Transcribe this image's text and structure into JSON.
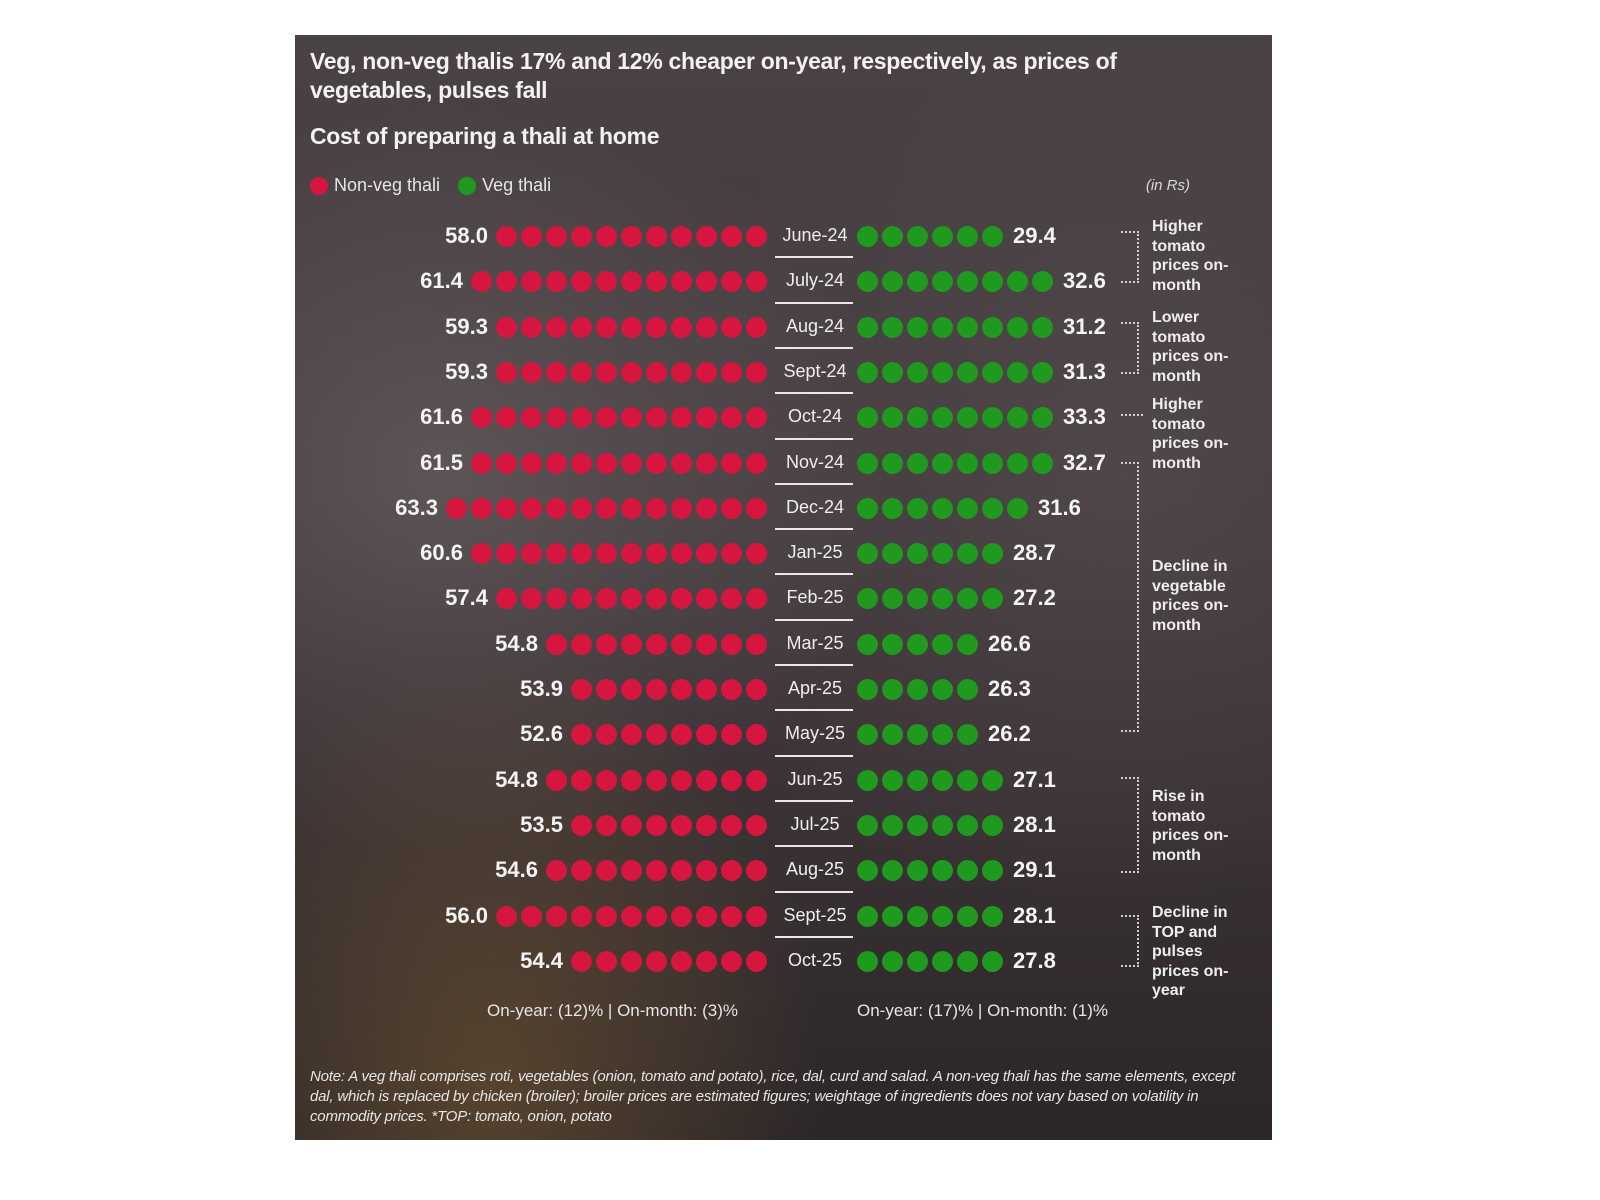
{
  "header": {
    "title": "Veg, non-veg thalis 17% and 12% cheaper on-year, respectively, as prices of vegetables, pulses fall",
    "subtitle": "Cost of preparing a thali at home",
    "unit": "(in Rs)"
  },
  "legend": [
    {
      "label": "Non-veg thali",
      "color": "#d6163f"
    },
    {
      "label": "Veg thali",
      "color": "#1f9a1f"
    }
  ],
  "colors": {
    "nonveg": "#d6163f",
    "veg": "#1f9a1f"
  },
  "rows": [
    {
      "month": "June-24",
      "nonveg": "58.0",
      "veg": "29.4",
      "nonveg_dots": 11,
      "veg_dots": 6
    },
    {
      "month": "July-24",
      "nonveg": "61.4",
      "veg": "32.6",
      "nonveg_dots": 12,
      "veg_dots": 8
    },
    {
      "month": "Aug-24",
      "nonveg": "59.3",
      "veg": "31.2",
      "nonveg_dots": 11,
      "veg_dots": 8
    },
    {
      "month": "Sept-24",
      "nonveg": "59.3",
      "veg": "31.3",
      "nonveg_dots": 11,
      "veg_dots": 8
    },
    {
      "month": "Oct-24",
      "nonveg": "61.6",
      "veg": "33.3",
      "nonveg_dots": 12,
      "veg_dots": 8
    },
    {
      "month": "Nov-24",
      "nonveg": "61.5",
      "veg": "32.7",
      "nonveg_dots": 12,
      "veg_dots": 8
    },
    {
      "month": "Dec-24",
      "nonveg": "63.3",
      "veg": "31.6",
      "nonveg_dots": 13,
      "veg_dots": 7
    },
    {
      "month": "Jan-25",
      "nonveg": "60.6",
      "veg": "28.7",
      "nonveg_dots": 12,
      "veg_dots": 6
    },
    {
      "month": "Feb-25",
      "nonveg": "57.4",
      "veg": "27.2",
      "nonveg_dots": 11,
      "veg_dots": 6
    },
    {
      "month": "Mar-25",
      "nonveg": "54.8",
      "veg": "26.6",
      "nonveg_dots": 9,
      "veg_dots": 5
    },
    {
      "month": "Apr-25",
      "nonveg": "53.9",
      "veg": "26.3",
      "nonveg_dots": 8,
      "veg_dots": 5
    },
    {
      "month": "May-25",
      "nonveg": "52.6",
      "veg": "26.2",
      "nonveg_dots": 8,
      "veg_dots": 5
    },
    {
      "month": "Jun-25",
      "nonveg": "54.8",
      "veg": "27.1",
      "nonveg_dots": 9,
      "veg_dots": 6
    },
    {
      "month": "Jul-25",
      "nonveg": "53.5",
      "veg": "28.1",
      "nonveg_dots": 8,
      "veg_dots": 6
    },
    {
      "month": "Aug-25",
      "nonveg": "54.6",
      "veg": "29.1",
      "nonveg_dots": 9,
      "veg_dots": 6
    },
    {
      "month": "Sept-25",
      "nonveg": "56.0",
      "veg": "28.1",
      "nonveg_dots": 11,
      "veg_dots": 6
    },
    {
      "month": "Oct-25",
      "nonveg": "54.4",
      "veg": "27.8",
      "nonveg_dots": 8,
      "veg_dots": 6
    }
  ],
  "annotations": [
    {
      "text": "Higher tomato prices on-month",
      "from": "June-24",
      "to": "July-24"
    },
    {
      "text": "Lower tomato prices on-month",
      "from": "Aug-24",
      "to": "Sept-24"
    },
    {
      "text": "Higher tomato prices on-month",
      "from": "Oct-24",
      "to": "Oct-24"
    },
    {
      "text": "Decline in vegetable prices on-month",
      "from": "Nov-24",
      "to": "May-25"
    },
    {
      "text": "Rise in tomato prices on-month",
      "from": "Jun-25",
      "to": "Aug-25"
    },
    {
      "text": "Decline in TOP and pulses prices on-year",
      "from": "Sept-25",
      "to": "Oct-25"
    }
  ],
  "summary": {
    "nonveg": "On-year: (12)% | On-month: (3)%",
    "veg": "On-year: (17)% | On-month: (1)%"
  },
  "note": "Note: A veg thali comprises roti, vegetables (onion, tomato and potato), rice, dal, curd and salad. A non-veg thali has the same elements, except dal, which is replaced by chicken (broiler); broiler prices are estimated figures; weightage of ingredients does not vary based on volatility in commodity prices. *TOP: tomato, onion, potato",
  "chart_data": {
    "type": "dot-bar",
    "title": "Veg, non-veg thalis 17% and 12% cheaper on-year, respectively, as prices of vegetables, pulses fall",
    "subtitle": "Cost of preparing a thali at home",
    "ylabel": "Rs",
    "categories": [
      "June-24",
      "July-24",
      "Aug-24",
      "Sept-24",
      "Oct-24",
      "Nov-24",
      "Dec-24",
      "Jan-25",
      "Feb-25",
      "Mar-25",
      "Apr-25",
      "May-25",
      "Jun-25",
      "Jul-25",
      "Aug-25",
      "Sept-25",
      "Oct-25"
    ],
    "series": [
      {
        "name": "Non-veg thali",
        "color": "#d6163f",
        "values": [
          58.0,
          61.4,
          59.3,
          59.3,
          61.6,
          61.5,
          63.3,
          60.6,
          57.4,
          54.8,
          53.9,
          52.6,
          54.8,
          53.5,
          54.6,
          56.0,
          54.4
        ]
      },
      {
        "name": "Veg thali",
        "color": "#1f9a1f",
        "values": [
          29.4,
          32.6,
          31.2,
          31.3,
          33.3,
          32.7,
          31.6,
          28.7,
          27.2,
          26.6,
          26.3,
          26.2,
          27.1,
          28.1,
          29.1,
          28.1,
          27.8
        ]
      }
    ],
    "legend_position": "top-left",
    "grid": false,
    "annotations": [
      "Higher tomato prices on-month (June-24 to July-24)",
      "Lower tomato prices on-month (Aug-24 to Sept-24)",
      "Higher tomato prices on-month (Oct-24)",
      "Decline in vegetable prices on-month (Nov-24 to May-25)",
      "Rise in tomato prices on-month (Jun-25 to Aug-25)",
      "Decline in TOP and pulses prices on-year (Sept-25 to Oct-25)"
    ],
    "footer": [
      "Non-veg: On-year: (12)% | On-month: (3)%",
      "Veg: On-year: (17)% | On-month: (1)%"
    ]
  }
}
